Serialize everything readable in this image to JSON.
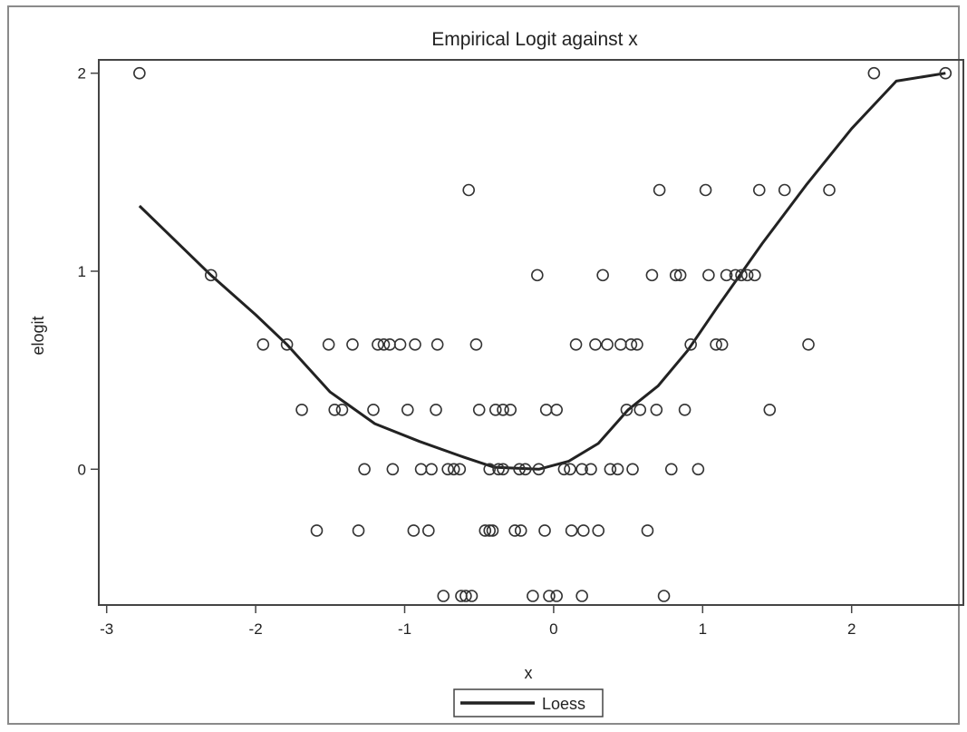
{
  "chart_data": {
    "type": "scatter",
    "title": "Empirical Logit against x",
    "xlabel": "x",
    "ylabel": "elogit",
    "xlim": [
      -3.0,
      2.65
    ],
    "ylim": [
      -0.67,
      2.08
    ],
    "xticks": [
      -3,
      -2,
      -1,
      0,
      1,
      2
    ],
    "yticks": [
      0,
      1,
      2
    ],
    "xtick_labels": [
      "-3",
      "-2",
      "-1",
      "0",
      "1",
      "2"
    ],
    "ytick_labels": [
      "0",
      "1",
      "2"
    ],
    "grid": false,
    "legend": {
      "position": "bottom-center",
      "entries": [
        "Loess"
      ]
    },
    "points": [
      {
        "x": -2.78,
        "y": 2.0
      },
      {
        "x": 2.15,
        "y": 2.0
      },
      {
        "x": 2.63,
        "y": 2.0
      },
      {
        "x": -0.57,
        "y": 1.41
      },
      {
        "x": 0.71,
        "y": 1.41
      },
      {
        "x": 1.02,
        "y": 1.41
      },
      {
        "x": 1.38,
        "y": 1.41
      },
      {
        "x": 1.55,
        "y": 1.41
      },
      {
        "x": 1.85,
        "y": 1.41
      },
      {
        "x": -2.3,
        "y": 0.98
      },
      {
        "x": -0.11,
        "y": 0.98
      },
      {
        "x": 0.33,
        "y": 0.98
      },
      {
        "x": 0.66,
        "y": 0.98
      },
      {
        "x": 0.82,
        "y": 0.98
      },
      {
        "x": 0.85,
        "y": 0.98
      },
      {
        "x": 1.04,
        "y": 0.98
      },
      {
        "x": 1.16,
        "y": 0.98
      },
      {
        "x": 1.22,
        "y": 0.98
      },
      {
        "x": 1.26,
        "y": 0.98
      },
      {
        "x": 1.3,
        "y": 0.98
      },
      {
        "x": 1.35,
        "y": 0.98
      },
      {
        "x": -1.95,
        "y": 0.63
      },
      {
        "x": -1.79,
        "y": 0.63
      },
      {
        "x": -1.51,
        "y": 0.63
      },
      {
        "x": -1.35,
        "y": 0.63
      },
      {
        "x": -1.18,
        "y": 0.63
      },
      {
        "x": -1.14,
        "y": 0.63
      },
      {
        "x": -1.1,
        "y": 0.63
      },
      {
        "x": -1.03,
        "y": 0.63
      },
      {
        "x": -0.93,
        "y": 0.63
      },
      {
        "x": -0.78,
        "y": 0.63
      },
      {
        "x": -0.52,
        "y": 0.63
      },
      {
        "x": 0.15,
        "y": 0.63
      },
      {
        "x": 0.28,
        "y": 0.63
      },
      {
        "x": 0.36,
        "y": 0.63
      },
      {
        "x": 0.45,
        "y": 0.63
      },
      {
        "x": 0.52,
        "y": 0.63
      },
      {
        "x": 0.56,
        "y": 0.63
      },
      {
        "x": 0.92,
        "y": 0.63
      },
      {
        "x": 1.09,
        "y": 0.63
      },
      {
        "x": 1.13,
        "y": 0.63
      },
      {
        "x": 1.71,
        "y": 0.63
      },
      {
        "x": -1.69,
        "y": 0.3
      },
      {
        "x": -1.47,
        "y": 0.3
      },
      {
        "x": -1.42,
        "y": 0.3
      },
      {
        "x": -1.21,
        "y": 0.3
      },
      {
        "x": -0.98,
        "y": 0.3
      },
      {
        "x": -0.79,
        "y": 0.3
      },
      {
        "x": -0.5,
        "y": 0.3
      },
      {
        "x": -0.39,
        "y": 0.3
      },
      {
        "x": -0.34,
        "y": 0.3
      },
      {
        "x": -0.29,
        "y": 0.3
      },
      {
        "x": -0.05,
        "y": 0.3
      },
      {
        "x": 0.02,
        "y": 0.3
      },
      {
        "x": 0.49,
        "y": 0.3
      },
      {
        "x": 0.58,
        "y": 0.3
      },
      {
        "x": 0.69,
        "y": 0.3
      },
      {
        "x": 0.88,
        "y": 0.3
      },
      {
        "x": 1.45,
        "y": 0.3
      },
      {
        "x": -1.27,
        "y": 0.0
      },
      {
        "x": -1.08,
        "y": 0.0
      },
      {
        "x": -0.89,
        "y": 0.0
      },
      {
        "x": -0.82,
        "y": 0.0
      },
      {
        "x": -0.71,
        "y": 0.0
      },
      {
        "x": -0.67,
        "y": 0.0
      },
      {
        "x": -0.63,
        "y": 0.0
      },
      {
        "x": -0.43,
        "y": 0.0
      },
      {
        "x": -0.37,
        "y": 0.0
      },
      {
        "x": -0.34,
        "y": 0.0
      },
      {
        "x": -0.23,
        "y": 0.0
      },
      {
        "x": -0.19,
        "y": 0.0
      },
      {
        "x": -0.1,
        "y": 0.0
      },
      {
        "x": 0.07,
        "y": 0.0
      },
      {
        "x": 0.11,
        "y": 0.0
      },
      {
        "x": 0.19,
        "y": 0.0
      },
      {
        "x": 0.25,
        "y": 0.0
      },
      {
        "x": 0.38,
        "y": 0.0
      },
      {
        "x": 0.43,
        "y": 0.0
      },
      {
        "x": 0.53,
        "y": 0.0
      },
      {
        "x": 0.79,
        "y": 0.0
      },
      {
        "x": 0.97,
        "y": 0.0
      },
      {
        "x": -1.59,
        "y": -0.31
      },
      {
        "x": -1.31,
        "y": -0.31
      },
      {
        "x": -0.94,
        "y": -0.31
      },
      {
        "x": -0.84,
        "y": -0.31
      },
      {
        "x": -0.46,
        "y": -0.31
      },
      {
        "x": -0.43,
        "y": -0.31
      },
      {
        "x": -0.41,
        "y": -0.31
      },
      {
        "x": -0.26,
        "y": -0.31
      },
      {
        "x": -0.22,
        "y": -0.31
      },
      {
        "x": -0.06,
        "y": -0.31
      },
      {
        "x": 0.12,
        "y": -0.31
      },
      {
        "x": 0.2,
        "y": -0.31
      },
      {
        "x": 0.3,
        "y": -0.31
      },
      {
        "x": 0.63,
        "y": -0.31
      },
      {
        "x": -0.74,
        "y": -0.64
      },
      {
        "x": -0.62,
        "y": -0.64
      },
      {
        "x": -0.59,
        "y": -0.64
      },
      {
        "x": -0.55,
        "y": -0.64
      },
      {
        "x": -0.14,
        "y": -0.64
      },
      {
        "x": -0.03,
        "y": -0.64
      },
      {
        "x": 0.02,
        "y": -0.64
      },
      {
        "x": 0.19,
        "y": -0.64
      },
      {
        "x": 0.74,
        "y": -0.64
      }
    ],
    "series": [
      {
        "name": "Loess",
        "type": "line",
        "points": [
          {
            "x": -2.78,
            "y": 1.33
          },
          {
            "x": -2.3,
            "y": 0.98
          },
          {
            "x": -2.0,
            "y": 0.78
          },
          {
            "x": -1.79,
            "y": 0.63
          },
          {
            "x": -1.5,
            "y": 0.39
          },
          {
            "x": -1.2,
            "y": 0.23
          },
          {
            "x": -0.9,
            "y": 0.14
          },
          {
            "x": -0.6,
            "y": 0.06
          },
          {
            "x": -0.4,
            "y": 0.01
          },
          {
            "x": -0.1,
            "y": 0.0
          },
          {
            "x": 0.1,
            "y": 0.04
          },
          {
            "x": 0.3,
            "y": 0.13
          },
          {
            "x": 0.5,
            "y": 0.3
          },
          {
            "x": 0.7,
            "y": 0.42
          },
          {
            "x": 0.9,
            "y": 0.6
          },
          {
            "x": 1.1,
            "y": 0.82
          },
          {
            "x": 1.4,
            "y": 1.14
          },
          {
            "x": 1.7,
            "y": 1.44
          },
          {
            "x": 2.0,
            "y": 1.72
          },
          {
            "x": 2.3,
            "y": 1.96
          },
          {
            "x": 2.63,
            "y": 2.0
          }
        ]
      }
    ]
  }
}
